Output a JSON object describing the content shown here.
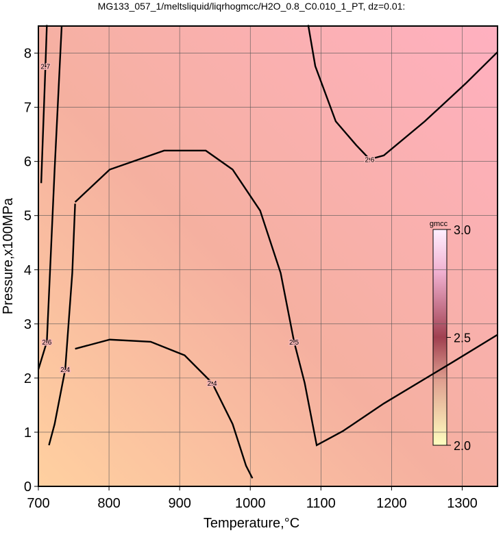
{
  "chart_data": {
    "type": "contour",
    "title": "MG133_057_1/meltsliquid/liqrhogmcc/H2O_0.8_C0.010_1_PT, dz=0.01:",
    "x_label": "Temperature,°C",
    "y_label": "Pressure,x100MPa",
    "xlim": [
      700,
      1350
    ],
    "ylim": [
      0,
      8.5
    ],
    "xticks": [
      700,
      800,
      900,
      1000,
      1100,
      1200,
      1300
    ],
    "yticks": [
      0,
      1,
      2,
      3,
      4,
      5,
      6,
      7,
      8
    ],
    "grid": true,
    "contours": [
      {
        "level": 2.5,
        "x": [
          752,
          801,
          878,
          937,
          975,
          1014,
          1043,
          1062,
          1077,
          1094,
          1131,
          1189,
          1286,
          1350
        ],
        "y": [
          5.25,
          5.85,
          6.2,
          6.2,
          5.85,
          5.09,
          3.94,
          2.67,
          1.91,
          0.76,
          1.02,
          1.53,
          2.29,
          2.8
        ]
      },
      {
        "level": 2.4,
        "x": [
          752,
          801,
          859,
          907,
          946,
          975,
          994,
          1003
        ],
        "y": [
          2.54,
          2.71,
          2.67,
          2.42,
          1.91,
          1.15,
          0.38,
          0.15
        ]
      },
      {
        "level": 2.4,
        "x": [
          715,
          723,
          738,
          748,
          752
        ],
        "y": [
          0.76,
          1.15,
          2.16,
          3.94,
          5.22
        ]
      },
      {
        "level": 2.6,
        "x": [
          1082,
          1092,
          1121,
          1150,
          1169,
          1189,
          1247,
          1305,
          1350
        ],
        "y": [
          8.52,
          7.76,
          6.74,
          6.3,
          6.04,
          6.11,
          6.74,
          7.44,
          8.02
        ]
      },
      {
        "level": 2.7,
        "x": [
          704,
          710,
          712
        ],
        "y": [
          5.6,
          7.76,
          8.52
        ]
      },
      {
        "level": 2.6,
        "x": [
          733,
          723,
          712,
          700
        ],
        "y": [
          8.5,
          5.85,
          2.67,
          2.16
        ]
      }
    ],
    "colorbar": {
      "label": "gmcc",
      "clim": [
        2,
        3
      ],
      "ticks": [
        {
          "value": 2,
          "label": "2.0"
        },
        {
          "value": 2.5,
          "label": "2.5"
        },
        {
          "value": 3,
          "label": "3.0"
        }
      ]
    }
  }
}
